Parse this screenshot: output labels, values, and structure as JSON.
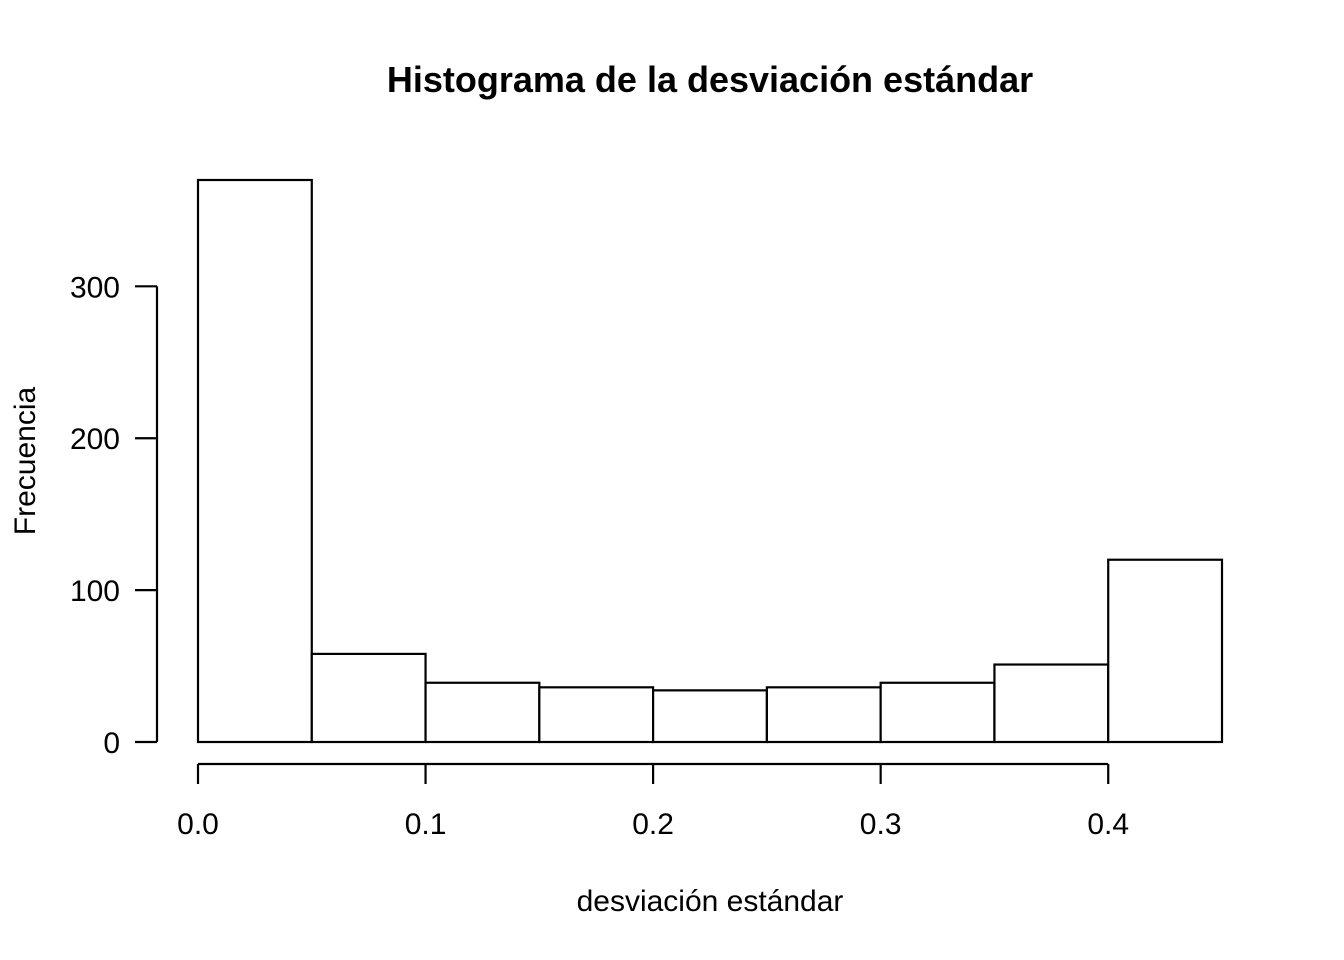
{
  "chart_data": {
    "type": "bar",
    "title": "Histograma de la desviación estándar",
    "xlabel": "desviación estándar",
    "ylabel": "Frecuencia",
    "bins": [
      {
        "start": 0.0,
        "end": 0.05,
        "count": 370
      },
      {
        "start": 0.05,
        "end": 0.1,
        "count": 58
      },
      {
        "start": 0.1,
        "end": 0.15,
        "count": 39
      },
      {
        "start": 0.15,
        "end": 0.2,
        "count": 36
      },
      {
        "start": 0.2,
        "end": 0.25,
        "count": 34
      },
      {
        "start": 0.25,
        "end": 0.3,
        "count": 36
      },
      {
        "start": 0.3,
        "end": 0.35,
        "count": 39
      },
      {
        "start": 0.35,
        "end": 0.4,
        "count": 51
      },
      {
        "start": 0.4,
        "end": 0.45,
        "count": 120
      }
    ],
    "x_ticks": [
      {
        "value": 0.0,
        "label": "0.0"
      },
      {
        "value": 0.1,
        "label": "0.1"
      },
      {
        "value": 0.2,
        "label": "0.2"
      },
      {
        "value": 0.3,
        "label": "0.3"
      },
      {
        "value": 0.4,
        "label": "0.4"
      }
    ],
    "y_ticks": [
      {
        "value": 0,
        "label": "0"
      },
      {
        "value": 100,
        "label": "100"
      },
      {
        "value": 200,
        "label": "200"
      },
      {
        "value": 300,
        "label": "300"
      }
    ],
    "xlim": [
      0,
      0.45
    ],
    "ylim": [
      0,
      370
    ],
    "grid": false
  }
}
